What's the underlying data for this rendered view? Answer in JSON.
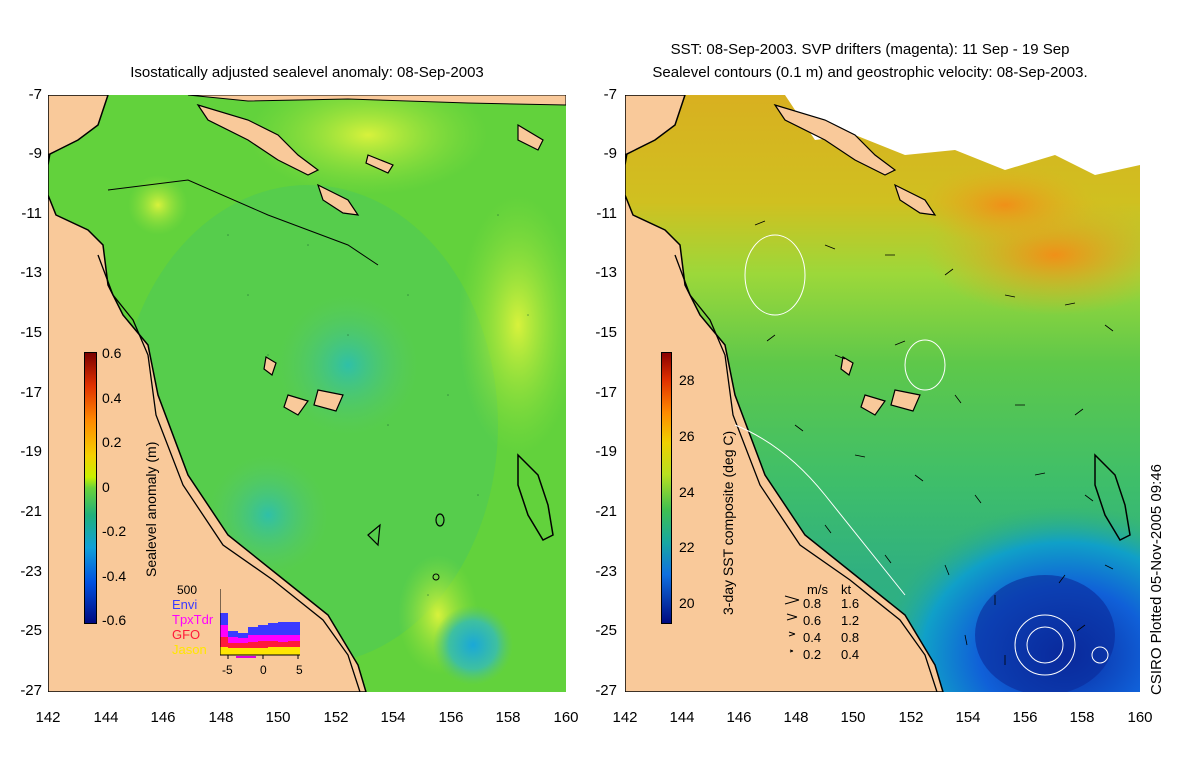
{
  "left_panel": {
    "title": "Isostatically adjusted sealevel anomaly: 08-Sep-2003",
    "y_ticks": [
      "-7",
      "-9",
      "-11",
      "-13",
      "-15",
      "-17",
      "-19",
      "-21",
      "-23",
      "-25",
      "-27"
    ],
    "x_ticks": [
      "142",
      "144",
      "146",
      "148",
      "150",
      "152",
      "154",
      "156",
      "158",
      "160"
    ],
    "colorbar": {
      "label": "Sealevel anomaly (m)",
      "ticks": [
        "0.6",
        "0.4",
        "0.2",
        "0",
        "-0.2",
        "-0.4",
        "-0.6"
      ]
    },
    "inset": {
      "count_label": "500",
      "legend": [
        {
          "name": "Envi",
          "color": "#3a3aff"
        },
        {
          "name": "TpxTdr",
          "color": "#ff00ff"
        },
        {
          "name": "GFO",
          "color": "#ff1a3a"
        },
        {
          "name": "Jason",
          "color": "#ffe600"
        }
      ],
      "x_ticks": [
        "-5",
        "0",
        "5"
      ]
    }
  },
  "right_panel": {
    "title_line1": "SST: 08-Sep-2003. SVP drifters (magenta): 11 Sep - 19 Sep",
    "title_line2": "Sealevel contours (0.1 m) and geostrophic velocity: 08-Sep-2003.",
    "y_ticks": [
      "-7",
      "-9",
      "-11",
      "-13",
      "-15",
      "-17",
      "-19",
      "-21",
      "-23",
      "-25",
      "-27"
    ],
    "x_ticks": [
      "142",
      "144",
      "146",
      "148",
      "150",
      "152",
      "154",
      "156",
      "158",
      "160"
    ],
    "colorbar": {
      "label": "3-day SST composite (deg C)",
      "ticks": [
        "28",
        "26",
        "24",
        "22",
        "20"
      ]
    },
    "velocity_legend": {
      "header_ms": "m/s",
      "header_kt": "kt",
      "rows": [
        {
          "ms": "0.8",
          "kt": "1.6"
        },
        {
          "ms": "0.6",
          "kt": "1.2"
        },
        {
          "ms": "0.4",
          "kt": "0.8"
        },
        {
          "ms": "0.2",
          "kt": "0.4"
        }
      ]
    },
    "credit": "CSIRO Plotted 05-Nov-2005 09:46"
  },
  "colors": {
    "land": "#f9c99a",
    "sla_background": "#6fd63c",
    "sst_background": "#5cc64a"
  }
}
